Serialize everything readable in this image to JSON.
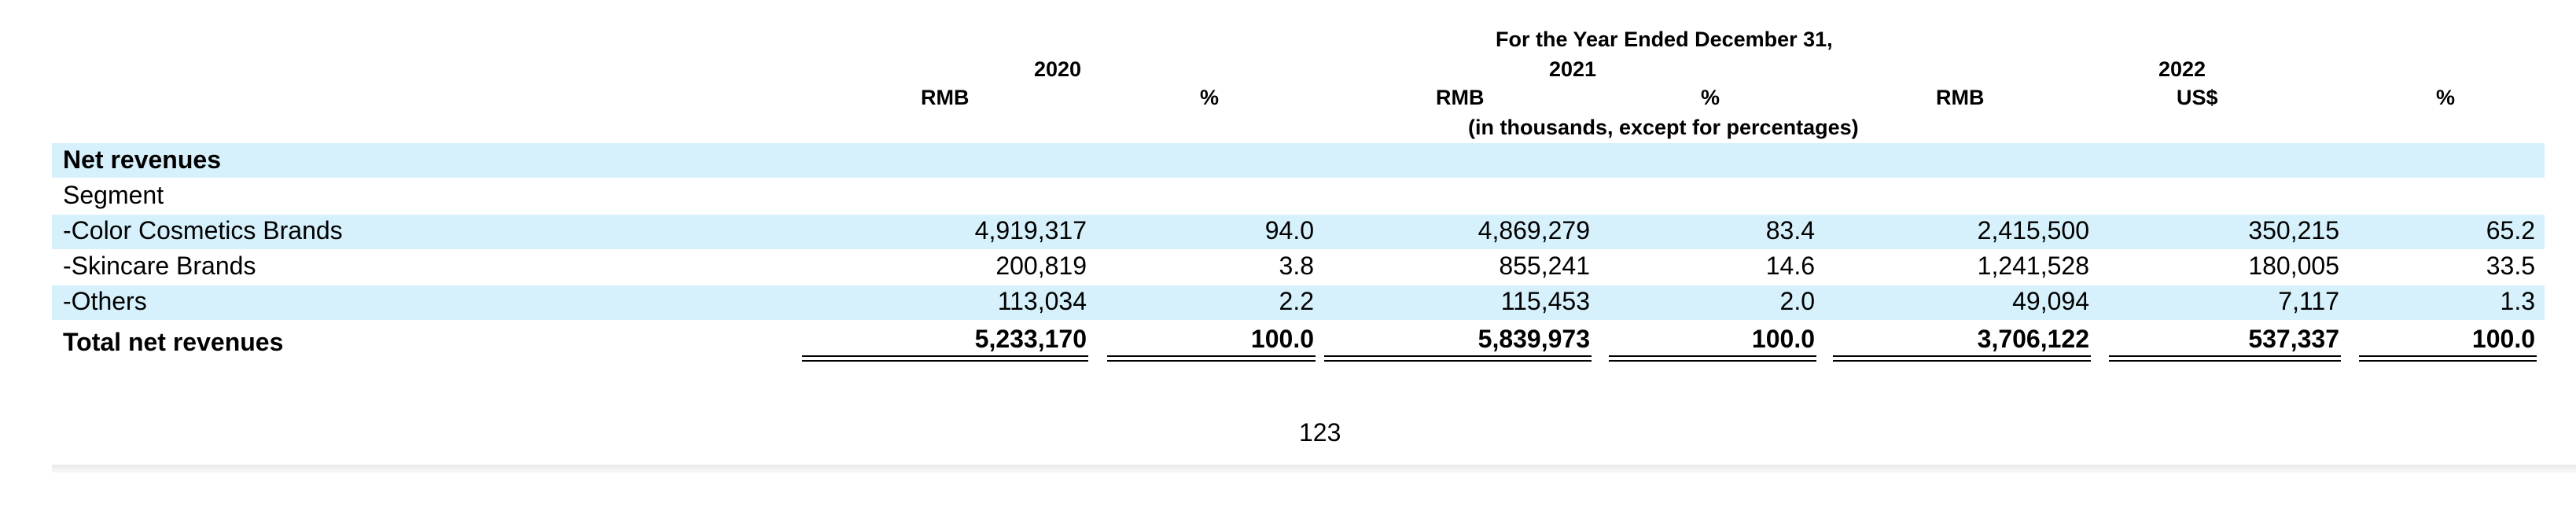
{
  "header": {
    "period": "For the Year Ended December 31,",
    "years": {
      "y2020": "2020",
      "y2021": "2021",
      "y2022": "2022"
    },
    "units": {
      "c1": "RMB",
      "c2": "%",
      "c3": "RMB",
      "c4": "%",
      "c5": "RMB",
      "c6": "US$",
      "c7": "%"
    },
    "note": "(in thousands, except for percentages)"
  },
  "rows": [
    {
      "label": "Net revenues",
      "values": []
    },
    {
      "label": "Segment",
      "values": []
    },
    {
      "label": "-Color Cosmetics Brands",
      "values": [
        "4,919,317",
        "94.0",
        "4,869,279",
        "83.4",
        "2,415,500",
        "350,215",
        "65.2"
      ]
    },
    {
      "label": "-Skincare Brands",
      "values": [
        "200,819",
        "3.8",
        "855,241",
        "14.6",
        "1,241,528",
        "180,005",
        "33.5"
      ]
    },
    {
      "label": "-Others",
      "values": [
        "113,034",
        "2.2",
        "115,453",
        "2.0",
        "49,094",
        "7,117",
        "1.3"
      ]
    },
    {
      "label": "Total net revenues",
      "values": [
        "5,233,170",
        "100.0",
        "5,839,973",
        "100.0",
        "3,706,122",
        "537,337",
        "100.0"
      ]
    }
  ],
  "page_number": "123"
}
